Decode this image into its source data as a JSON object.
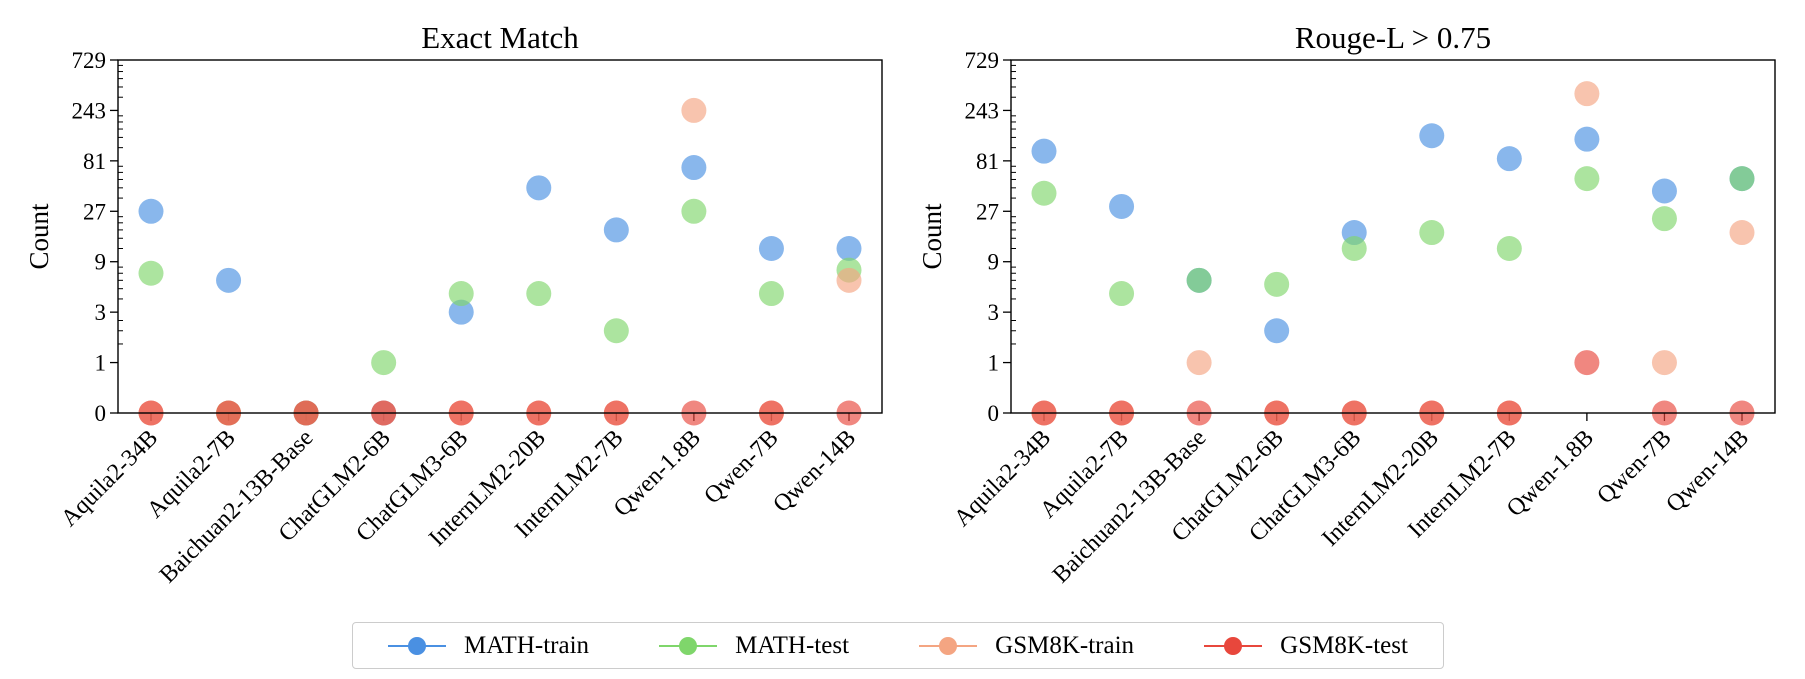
{
  "chart_data": [
    {
      "type": "scatter",
      "title": "Exact Match",
      "xlabel": "",
      "ylabel": "Count",
      "yscale": "symlog-base3",
      "ylim": [
        0,
        729
      ],
      "yticks": [
        "0",
        "1",
        "3",
        "9",
        "27",
        "81",
        "243",
        "729"
      ],
      "categories": [
        "Aquila2-34B",
        "Aquila2-7B",
        "Baichuan2-13B-Base",
        "ChatGLM2-6B",
        "ChatGLM3-6B",
        "InternLM2-20B",
        "InternLM2-7B",
        "Qwen-1.8B",
        "Qwen-7B",
        "Qwen-14B"
      ],
      "series": [
        {
          "name": "MATH-train",
          "values": [
            27,
            6,
            0,
            0,
            3,
            45,
            18,
            70,
            12,
            12
          ]
        },
        {
          "name": "MATH-test",
          "values": [
            7,
            0,
            0,
            1,
            4.5,
            4.5,
            2,
            27,
            4.5,
            7.5
          ]
        },
        {
          "name": "GSM8K-train",
          "values": [
            0,
            0,
            0,
            0,
            0,
            0,
            0,
            243,
            0,
            6
          ]
        },
        {
          "name": "GSM8K-test",
          "values": [
            0,
            0,
            0,
            0,
            0,
            0,
            0,
            0,
            0,
            0
          ]
        }
      ],
      "grid": false
    },
    {
      "type": "scatter",
      "title": "Rouge-L > 0.75",
      "xlabel": "",
      "ylabel": "Count",
      "yscale": "symlog-base3",
      "ylim": [
        0,
        729
      ],
      "yticks": [
        "0",
        "1",
        "3",
        "9",
        "27",
        "81",
        "243",
        "729"
      ],
      "categories": [
        "Aquila2-34B",
        "Aquila2-7B",
        "Baichuan2-13B-Base",
        "ChatGLM2-6B",
        "ChatGLM3-6B",
        "InternLM2-20B",
        "InternLM2-7B",
        "Qwen-1.8B",
        "Qwen-7B",
        "Qwen-14B"
      ],
      "series": [
        {
          "name": "MATH-train",
          "values": [
            100,
            30,
            6,
            2,
            17,
            140,
            85,
            130,
            42,
            55
          ]
        },
        {
          "name": "MATH-test",
          "values": [
            40,
            4.5,
            6,
            5.5,
            12,
            17,
            12,
            55,
            23,
            55
          ]
        },
        {
          "name": "GSM8K-train",
          "values": [
            0,
            0,
            1,
            0,
            0,
            0,
            0,
            350,
            1,
            17
          ]
        },
        {
          "name": "GSM8K-test",
          "values": [
            0,
            0,
            0,
            0,
            0,
            0,
            0,
            1,
            0,
            0
          ]
        }
      ],
      "grid": false
    }
  ],
  "legend": {
    "placement": "bottom-center",
    "items": [
      {
        "label": "MATH-train",
        "color": "#4a90e2"
      },
      {
        "label": "MATH-test",
        "color": "#7fd66b"
      },
      {
        "label": "GSM8K-train",
        "color": "#f4a582"
      },
      {
        "label": "GSM8K-test",
        "color": "#e8473c"
      }
    ]
  },
  "series_colors": {
    "MATH-train": "#4a90e2",
    "MATH-test": "#7fd66b",
    "GSM8K-train": "#f4a582",
    "GSM8K-test": "#e8473c"
  }
}
